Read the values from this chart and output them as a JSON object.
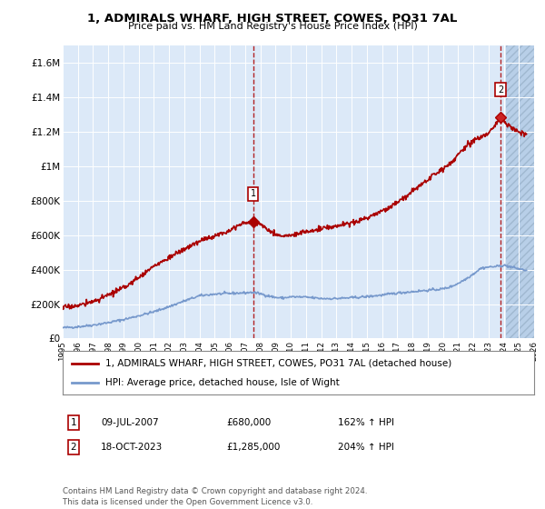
{
  "title": "1, ADMIRALS WHARF, HIGH STREET, COWES, PO31 7AL",
  "subtitle": "Price paid vs. HM Land Registry's House Price Index (HPI)",
  "legend_label_red": "1, ADMIRALS WHARF, HIGH STREET, COWES, PO31 7AL (detached house)",
  "legend_label_blue": "HPI: Average price, detached house, Isle of Wight",
  "annotation1_label": "1",
  "annotation1_date": "09-JUL-2007",
  "annotation1_price": "£680,000",
  "annotation1_hpi": "162% ↑ HPI",
  "annotation2_label": "2",
  "annotation2_date": "18-OCT-2023",
  "annotation2_price": "£1,285,000",
  "annotation2_hpi": "204% ↑ HPI",
  "footnote": "Contains HM Land Registry data © Crown copyright and database right 2024.\nThis data is licensed under the Open Government Licence v3.0.",
  "ylim_min": 0,
  "ylim_max": 1700000,
  "yticks": [
    0,
    200000,
    400000,
    600000,
    800000,
    1000000,
    1200000,
    1400000,
    1600000
  ],
  "ytick_labels": [
    "£0",
    "£200K",
    "£400K",
    "£600K",
    "£800K",
    "£1M",
    "£1.2M",
    "£1.4M",
    "£1.6M"
  ],
  "background_color": "#dce9f8",
  "hatch_color": "#b8cfe8",
  "red_color": "#aa0000",
  "blue_color": "#7799cc",
  "marker1_x": 2007.52,
  "marker1_y": 680000,
  "marker2_x": 2023.79,
  "marker2_y": 1285000,
  "xmin": 1995,
  "xmax": 2026,
  "hatch_start": 2024.17
}
